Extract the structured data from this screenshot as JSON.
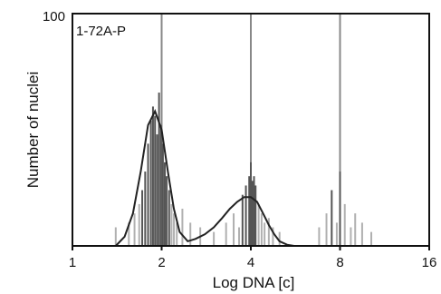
{
  "chart_data": {
    "type": "bar",
    "title": "1-72A-P",
    "xlabel": "Log DNA [c]",
    "ylabel": "Number of nuclei",
    "x_scale": "log2",
    "xlim": [
      1,
      16
    ],
    "ylim": [
      0,
      100
    ],
    "x_ticks": [
      "1",
      "2",
      "4",
      "8",
      "16"
    ],
    "y_ticks": [
      "100"
    ],
    "reference_lines_x": [
      2,
      4,
      8
    ],
    "grid": false,
    "legend": "none",
    "colors": {
      "bars": "#555555",
      "light_bars": "#b0b0b0",
      "curve": "#222222",
      "axis": "#111111",
      "reference": "#888888"
    },
    "series": [
      {
        "type": "histogram",
        "x": [
          1.4,
          1.55,
          1.62,
          1.68,
          1.72,
          1.76,
          1.8,
          1.84,
          1.87,
          1.9,
          1.93,
          1.96,
          1.99,
          2.02,
          2.05,
          2.08,
          2.12,
          2.16,
          2.2,
          2.25,
          2.35,
          2.5,
          2.7,
          3.0,
          3.3,
          3.5,
          3.65,
          3.75,
          3.85,
          3.95,
          4.0,
          4.05,
          4.1,
          4.15,
          4.25,
          4.35,
          4.45,
          4.6,
          4.75,
          5.0,
          6.8,
          7.2,
          7.5,
          7.8,
          8.0,
          8.3,
          8.7,
          9.0,
          9.5,
          10.2
        ],
        "values": [
          8,
          10,
          14,
          18,
          24,
          32,
          44,
          54,
          60,
          56,
          48,
          66,
          52,
          44,
          36,
          30,
          24,
          18,
          14,
          10,
          16,
          10,
          8,
          6,
          10,
          14,
          8,
          22,
          26,
          30,
          36,
          28,
          30,
          26,
          18,
          14,
          10,
          12,
          8,
          6,
          8,
          14,
          24,
          10,
          32,
          18,
          8,
          14,
          10,
          6
        ]
      },
      {
        "type": "fit",
        "name": "",
        "x": [
          1.4,
          1.5,
          1.6,
          1.7,
          1.8,
          1.9,
          2.0,
          2.1,
          2.2,
          2.3,
          2.45,
          2.6,
          2.8,
          3.0,
          3.2,
          3.4,
          3.6,
          3.8,
          4.0,
          4.2,
          4.4,
          4.6,
          4.8,
          5.0,
          5.3,
          5.6
        ],
        "values": [
          0,
          4,
          14,
          32,
          52,
          58,
          50,
          32,
          16,
          6,
          2,
          3,
          5,
          8,
          12,
          16,
          19,
          21,
          21,
          19,
          14,
          9,
          5,
          2,
          0.5,
          0
        ]
      }
    ]
  }
}
